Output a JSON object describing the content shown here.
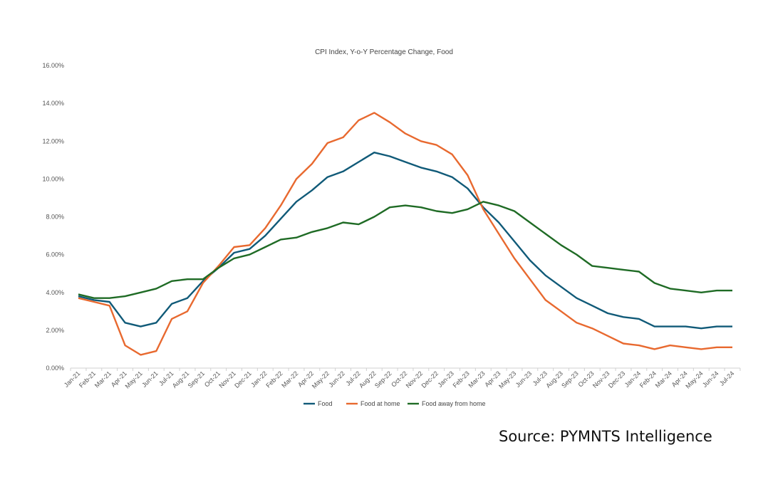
{
  "chart_data": {
    "type": "line",
    "title": "CPI Index, Y-o-Y Percentage Change, Food",
    "xlabel": "",
    "ylabel": "",
    "ylim": [
      0,
      16
    ],
    "yticks": [
      "0.00%",
      "2.00%",
      "4.00%",
      "6.00%",
      "8.00%",
      "10.00%",
      "12.00%",
      "14.00%",
      "16.00%"
    ],
    "grid": false,
    "legend": "bottom",
    "categories": [
      "Jan-21",
      "Feb-21",
      "Mar-21",
      "Apr-21",
      "May-21",
      "Jun-21",
      "Jul-21",
      "Aug-21",
      "Sep-21",
      "Oct-21",
      "Nov-21",
      "Dec-21",
      "Jan-22",
      "Feb-22",
      "Mar-22",
      "Apr-22",
      "May-22",
      "Jun-22",
      "Jul-22",
      "Aug-22",
      "Sep-22",
      "Oct-22",
      "Nov-22",
      "Dec-22",
      "Jan-23",
      "Feb-23",
      "Mar-23",
      "Apr-23",
      "May-23",
      "Jun-23",
      "Jul-23",
      "Aug-23",
      "Sep-23",
      "Oct-23",
      "Nov-23",
      "Dec-23",
      "Jan-24",
      "Feb-24",
      "Mar-24",
      "Apr-24",
      "May-24",
      "Jun-24",
      "Jul-24"
    ],
    "series": [
      {
        "name": "Food",
        "color": "#105a78",
        "values": [
          3.8,
          3.6,
          3.5,
          2.4,
          2.2,
          2.4,
          3.4,
          3.7,
          4.6,
          5.3,
          6.1,
          6.3,
          7.0,
          7.9,
          8.8,
          9.4,
          10.1,
          10.4,
          10.9,
          11.4,
          11.2,
          10.9,
          10.6,
          10.4,
          10.1,
          9.5,
          8.5,
          7.7,
          6.7,
          5.7,
          4.9,
          4.3,
          3.7,
          3.3,
          2.9,
          2.7,
          2.6,
          2.2,
          2.2,
          2.2,
          2.1,
          2.2,
          2.2
        ]
      },
      {
        "name": "Food at home",
        "color": "#e8692f",
        "values": [
          3.7,
          3.5,
          3.3,
          1.2,
          0.7,
          0.9,
          2.6,
          3.0,
          4.5,
          5.4,
          6.4,
          6.5,
          7.4,
          8.6,
          10.0,
          10.8,
          11.9,
          12.2,
          13.1,
          13.5,
          13.0,
          12.4,
          12.0,
          11.8,
          11.3,
          10.2,
          8.4,
          7.1,
          5.8,
          4.7,
          3.6,
          3.0,
          2.4,
          2.1,
          1.7,
          1.3,
          1.2,
          1.0,
          1.2,
          1.1,
          1.0,
          1.1,
          1.1
        ]
      },
      {
        "name": "Food away from home",
        "color": "#1f6b25",
        "values": [
          3.9,
          3.7,
          3.7,
          3.8,
          4.0,
          4.2,
          4.6,
          4.7,
          4.7,
          5.3,
          5.8,
          6.0,
          6.4,
          6.8,
          6.9,
          7.2,
          7.4,
          7.7,
          7.6,
          8.0,
          8.5,
          8.6,
          8.5,
          8.3,
          8.2,
          8.4,
          8.8,
          8.6,
          8.3,
          7.7,
          7.1,
          6.5,
          6.0,
          5.4,
          5.3,
          5.2,
          5.1,
          4.5,
          4.2,
          4.1,
          4.0,
          4.1,
          4.1
        ]
      }
    ]
  },
  "source": "Source: PYMNTS Intelligence"
}
